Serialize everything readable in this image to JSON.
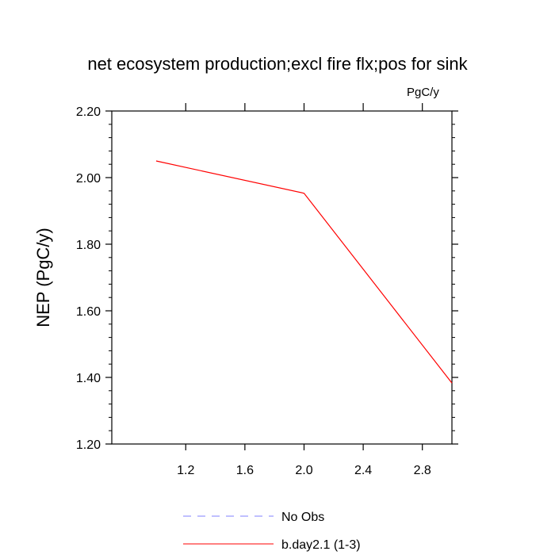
{
  "chart_data": {
    "type": "line",
    "title": "net ecosystem production;excl fire flx;pos for sink",
    "units_label": "PgC/y",
    "ylabel": "NEP  (PgC/y)",
    "xlabel": "",
    "xlim": [
      0.7,
      3.0
    ],
    "ylim": [
      1.2,
      2.2
    ],
    "x_ticks": [
      1.2,
      1.6,
      2.0,
      2.4,
      2.8
    ],
    "x_tick_labels": [
      "1.2",
      "1.6",
      "2.0",
      "2.4",
      "2.8"
    ],
    "y_ticks": [
      1.2,
      1.4,
      1.6,
      1.8,
      2.0,
      2.2
    ],
    "y_tick_labels": [
      "1.20",
      "1.40",
      "1.60",
      "1.80",
      "2.00",
      "2.20"
    ],
    "grid": false,
    "legend_position": "bottom-center",
    "series": [
      {
        "name": "b.day2.1 (1-3)",
        "color": "#ff0000",
        "style": "solid",
        "x": [
          1.0,
          2.0,
          3.0
        ],
        "y": [
          2.05,
          1.953,
          1.383
        ]
      }
    ],
    "legend": [
      {
        "label": "No Obs",
        "color": "#8080ff",
        "style": "dashed"
      },
      {
        "label": "b.day2.1 (1-3)",
        "color": "#ff0000",
        "style": "solid"
      }
    ]
  }
}
